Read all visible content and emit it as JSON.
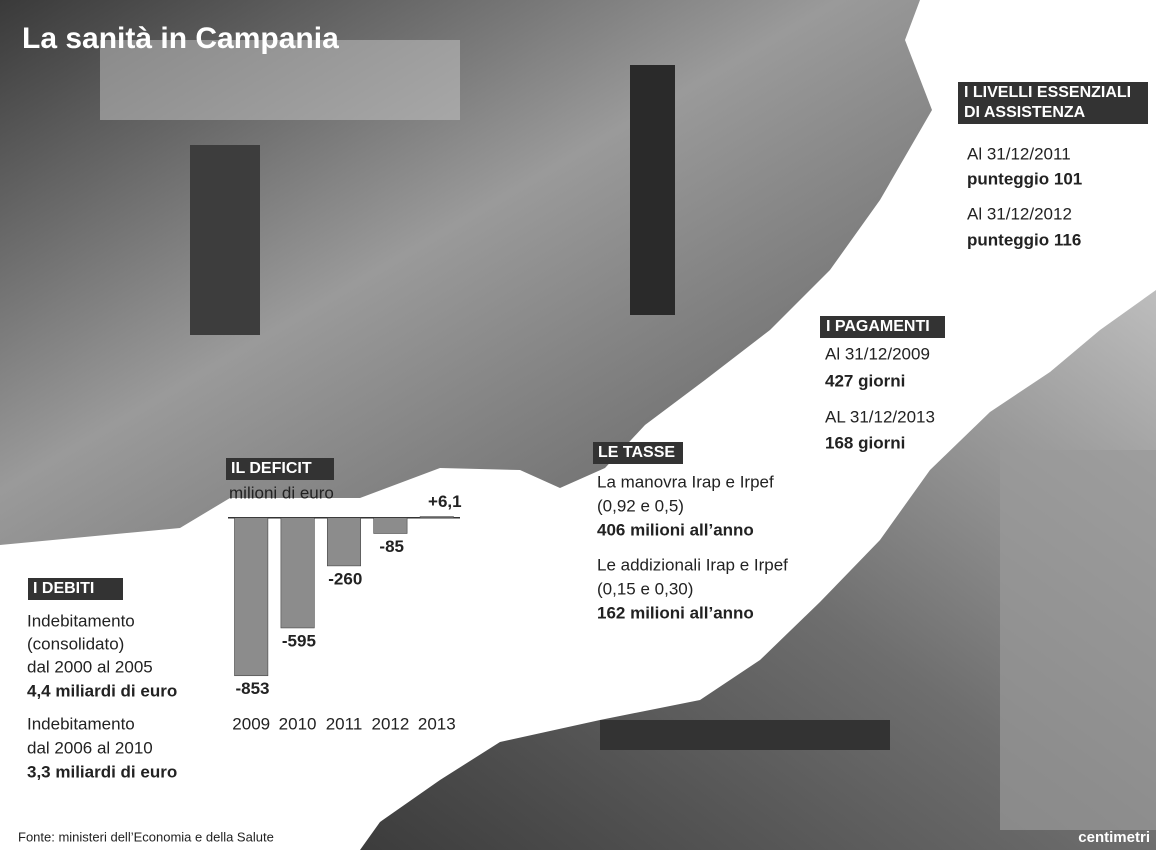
{
  "title": "La sanità in Campania",
  "livelli": {
    "heading": [
      "I LIVELLI ESSENZIALI",
      "DI ASSISTENZA"
    ],
    "items": [
      "Al 31/12/2011",
      "punteggio 101",
      "Al 31/12/2012",
      "punteggio 116"
    ]
  },
  "pagamenti": {
    "heading": "I PAGAMENTI",
    "items": [
      "Al 31/12/2009",
      "427 giorni",
      "AL 31/12/2013",
      "168 giorni"
    ]
  },
  "tasse": {
    "heading": "LE TASSE",
    "items": [
      "La manovra Irap e Irpef",
      "(0,92 e 0,5)",
      "406 milioni all’anno",
      "Le addizionali Irap e Irpef",
      "(0,15 e 0,30)",
      "162 milioni all’anno"
    ]
  },
  "debiti": {
    "heading": "I DEBITI",
    "items": [
      "Indebitamento",
      "(consolidato)",
      "dal 2000 al 2005",
      "4,4 miliardi di euro",
      "Indebitamento",
      "dal 2006 al 2010",
      "3,3 miliardi di euro"
    ]
  },
  "chart_data": {
    "type": "bar",
    "title": "IL DEFICIT",
    "subtitle": "milioni di euro",
    "categories": [
      "2009",
      "2010",
      "2011",
      "2012",
      "2013"
    ],
    "values": [
      -853,
      -595,
      -260,
      -85,
      6.1
    ],
    "value_labels": [
      "-853",
      "-595",
      "-260",
      "-85",
      "+6,1"
    ],
    "color": "#8c8c8c",
    "ylim": [
      -930,
      120
    ]
  },
  "source": "Fonte: ministeri dell’Economia e della Salute",
  "logo": "centimetri"
}
